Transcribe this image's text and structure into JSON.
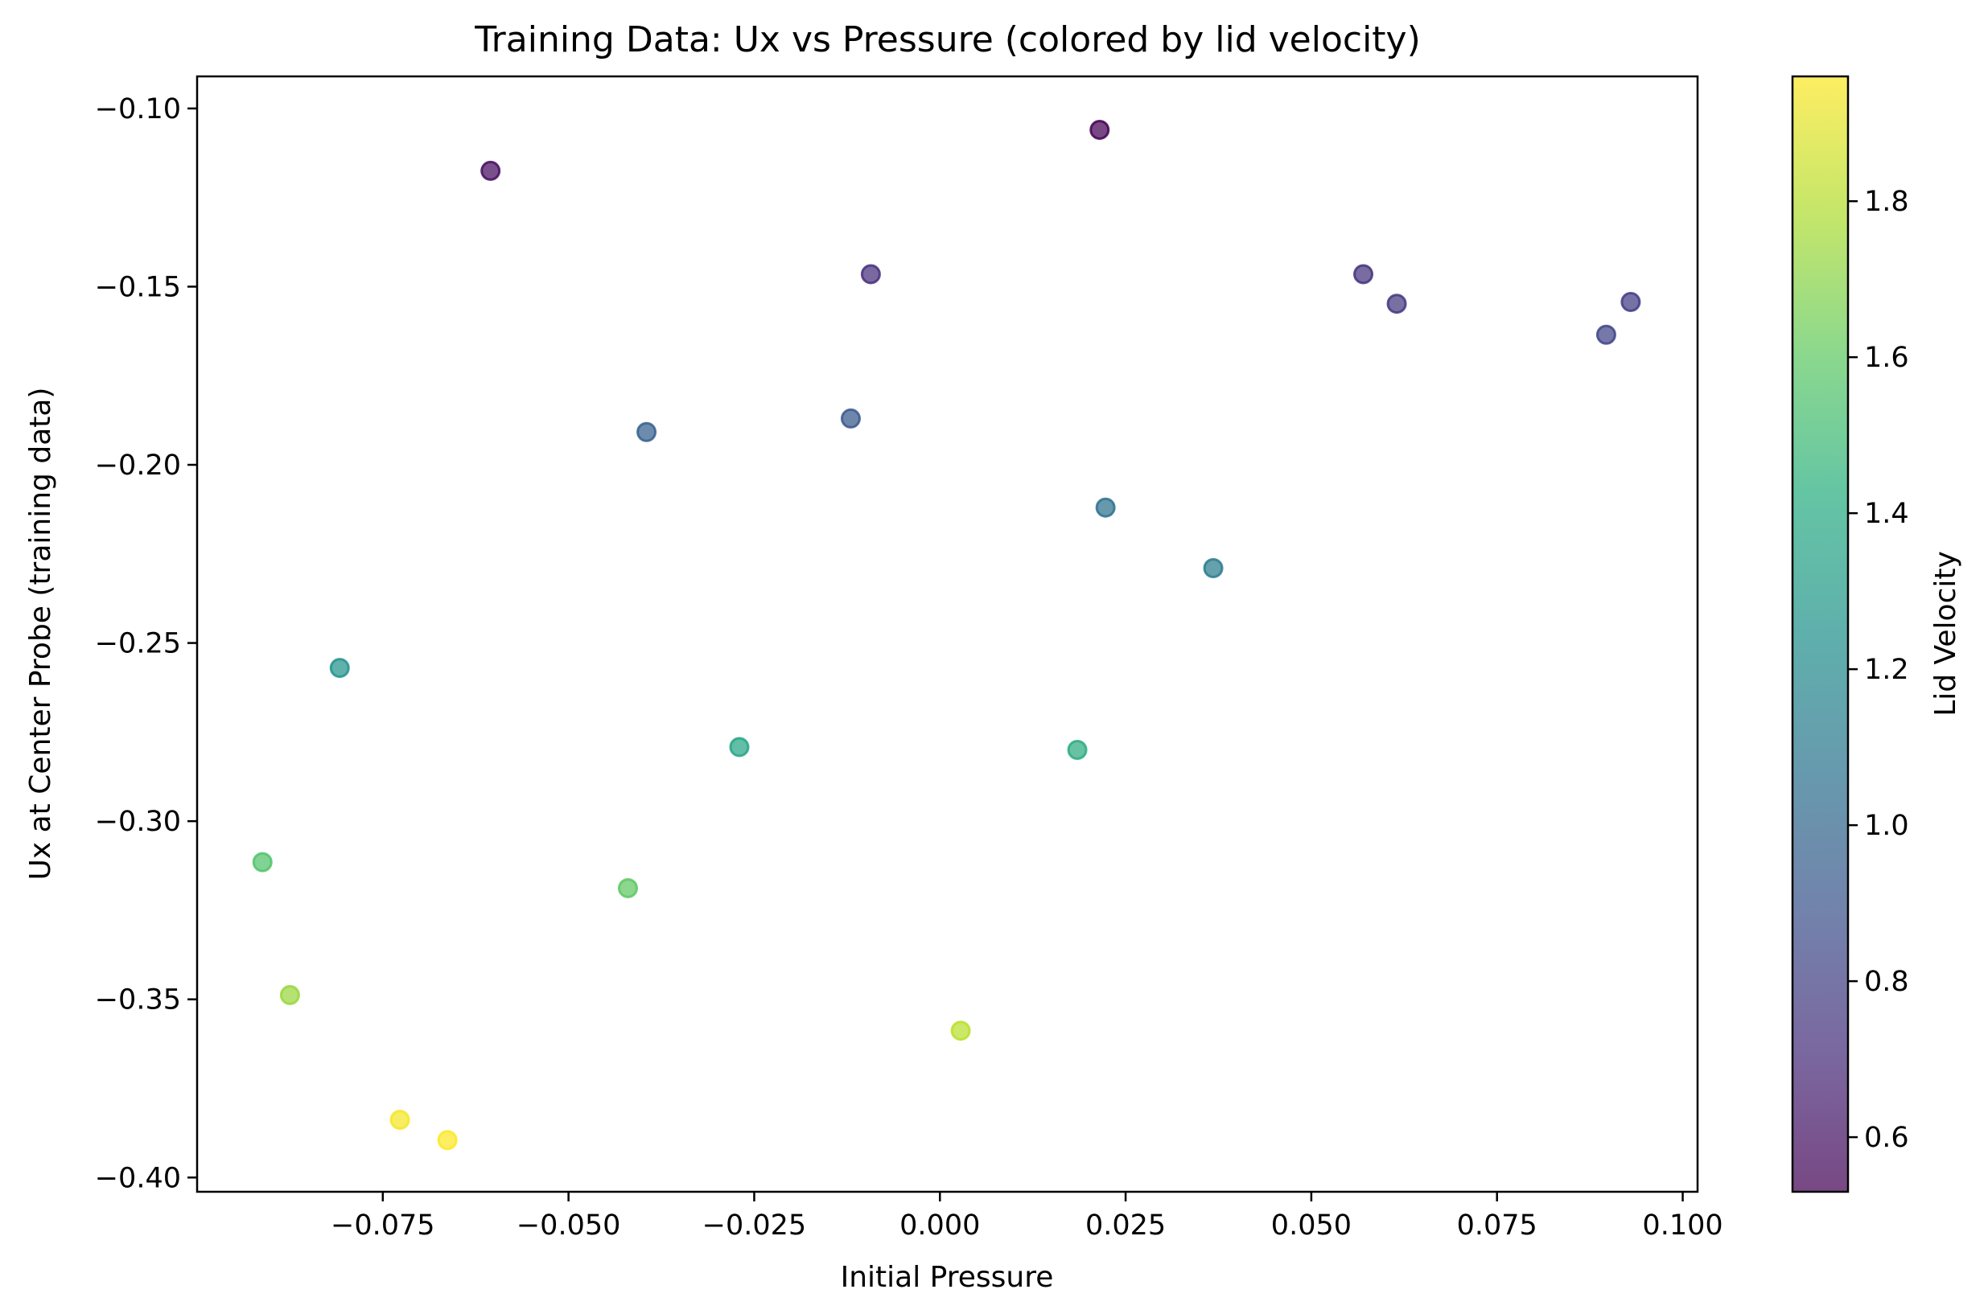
{
  "chart_data": {
    "type": "scatter",
    "title": "Training Data: Ux vs Pressure (colored by lid velocity)",
    "xlabel": "Initial Pressure",
    "ylabel": "Ux at Center Probe (training data)",
    "xlim": [
      -0.1,
      0.102
    ],
    "ylim": [
      -0.404,
      -0.091
    ],
    "xticks": [
      -0.075,
      -0.05,
      -0.025,
      0.0,
      0.025,
      0.05,
      0.075,
      0.1
    ],
    "xtick_labels": [
      "−0.075",
      "−0.050",
      "−0.025",
      "0.000",
      "0.025",
      "0.050",
      "0.075",
      "0.100"
    ],
    "yticks": [
      -0.1,
      -0.15,
      -0.2,
      -0.25,
      -0.3,
      -0.35,
      -0.4
    ],
    "ytick_labels": [
      "−0.10",
      "−0.15",
      "−0.20",
      "−0.25",
      "−0.30",
      "−0.35",
      "−0.40"
    ],
    "grid": false,
    "colorbar": {
      "label": "Lid Velocity",
      "colormap": "viridis",
      "range": [
        0.53,
        1.96
      ],
      "ticks": [
        0.6,
        0.8,
        1.0,
        1.2,
        1.4,
        1.6,
        1.8
      ],
      "tick_labels": [
        "0.6",
        "0.8",
        "1.0",
        "1.2",
        "1.4",
        "1.6",
        "1.8"
      ]
    },
    "points": [
      {
        "x": 0.0215,
        "y": -0.106,
        "c": 0.53
      },
      {
        "x": -0.0605,
        "y": -0.1175,
        "c": 0.58
      },
      {
        "x": -0.0093,
        "y": -0.1465,
        "c": 0.72
      },
      {
        "x": 0.057,
        "y": -0.1465,
        "c": 0.74
      },
      {
        "x": 0.0615,
        "y": -0.1548,
        "c": 0.76
      },
      {
        "x": 0.093,
        "y": -0.1543,
        "c": 0.78
      },
      {
        "x": 0.0897,
        "y": -0.1635,
        "c": 0.82
      },
      {
        "x": -0.012,
        "y": -0.187,
        "c": 0.92
      },
      {
        "x": -0.0395,
        "y": -0.1908,
        "c": 0.96
      },
      {
        "x": 0.0223,
        "y": -0.212,
        "c": 1.06
      },
      {
        "x": 0.0368,
        "y": -0.229,
        "c": 1.12
      },
      {
        "x": -0.0808,
        "y": -0.257,
        "c": 1.26
      },
      {
        "x": -0.027,
        "y": -0.2792,
        "c": 1.37
      },
      {
        "x": 0.0185,
        "y": -0.28,
        "c": 1.41
      },
      {
        "x": -0.0912,
        "y": -0.3115,
        "c": 1.56
      },
      {
        "x": -0.042,
        "y": -0.3188,
        "c": 1.6
      },
      {
        "x": -0.0875,
        "y": -0.3488,
        "c": 1.74
      },
      {
        "x": 0.0028,
        "y": -0.3588,
        "c": 1.81
      },
      {
        "x": -0.0727,
        "y": -0.3838,
        "c": 1.94
      },
      {
        "x": -0.0663,
        "y": -0.3895,
        "c": 1.96
      }
    ]
  }
}
